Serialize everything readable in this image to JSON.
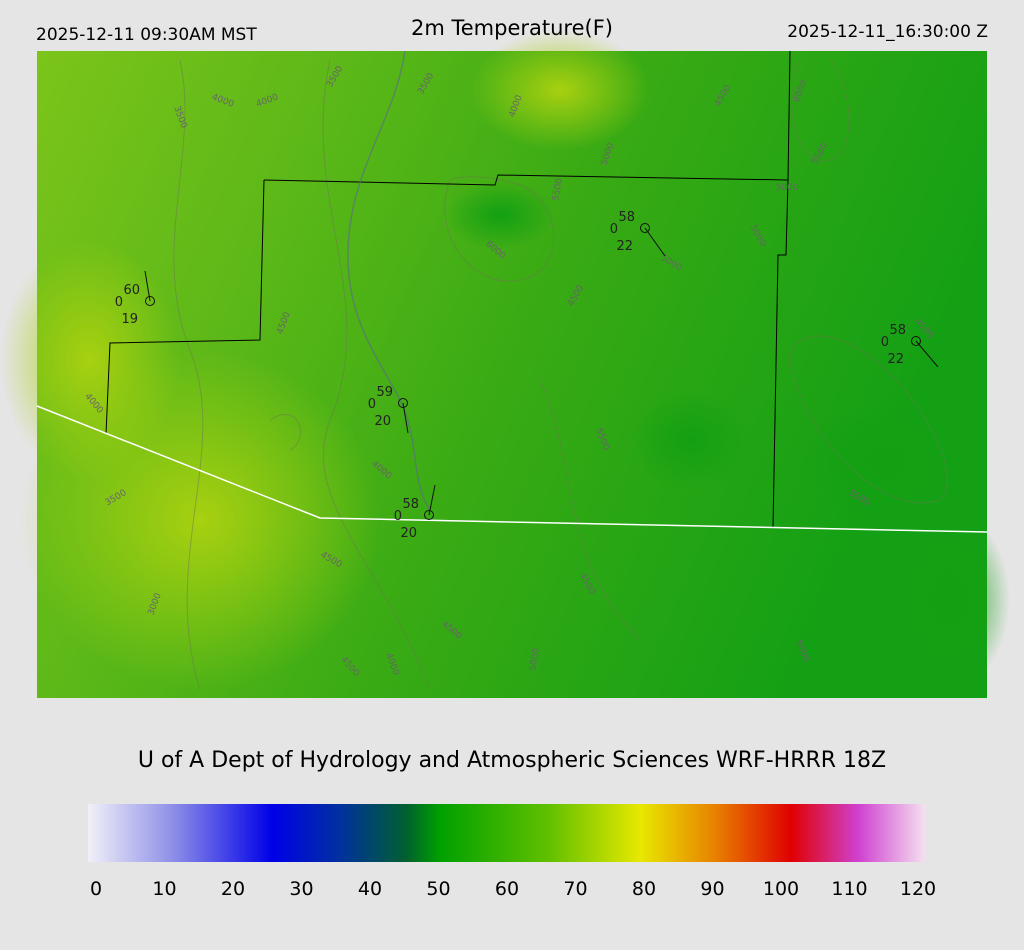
{
  "header": {
    "local_time": "2025-12-11 09:30AM MST",
    "title": "2m Temperature(F)",
    "utc_time": "2025-12-11_16:30:00 Z"
  },
  "stations": [
    {
      "temp": "60",
      "wind": "0",
      "dewpoint": "19"
    },
    {
      "temp": "59",
      "wind": "0",
      "dewpoint": "20"
    },
    {
      "temp": "58",
      "wind": "0",
      "dewpoint": "20"
    },
    {
      "temp": "58",
      "wind": "0",
      "dewpoint": "22"
    },
    {
      "temp": "58",
      "wind": "0",
      "dewpoint": "22"
    }
  ],
  "contour_labels": [
    "3500",
    "4000",
    "4000",
    "3500",
    "3500",
    "4000",
    "4500",
    "6000",
    "5000",
    "5500",
    "5500",
    "5000",
    "5000",
    "6000",
    "5000",
    "4500",
    "4500",
    "4500",
    "4000",
    "5500",
    "4000",
    "3500",
    "5500",
    "4500",
    "4500",
    "3000",
    "4500",
    "4500",
    "4000",
    "5000",
    "5000"
  ],
  "credit": "U of A Dept of Hydrology and Atmospheric Sciences WRF-HRRR 18Z",
  "colorbar": {
    "ticks": [
      0,
      10,
      20,
      30,
      40,
      50,
      60,
      70,
      80,
      90,
      100,
      110,
      120
    ]
  }
}
